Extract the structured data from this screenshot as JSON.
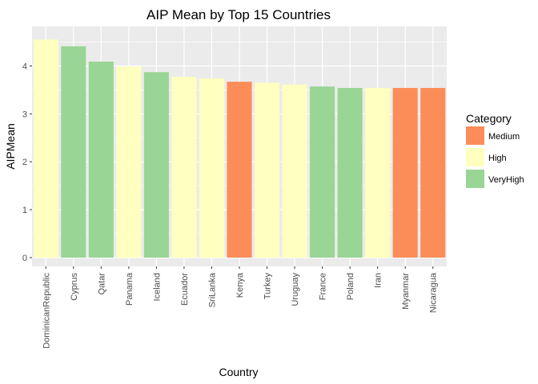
{
  "chart_data": {
    "type": "bar",
    "title": "AIP Mean by Top 15 Countries",
    "xlabel": "Country",
    "ylabel": "AIPMean",
    "ylim": [
      0,
      4.75
    ],
    "yticks": [
      0,
      1,
      2,
      3,
      4
    ],
    "categories": [
      "DominicanRepublic",
      "Cyprus",
      "Qatar",
      "Panama",
      "Iceland",
      "Ecuador",
      "SriLanka",
      "Kenya",
      "Turkey",
      "Uruguay",
      "France",
      "Poland",
      "Iran",
      "Myanmar",
      "Nicaragua"
    ],
    "values": [
      4.55,
      4.41,
      4.09,
      3.99,
      3.87,
      3.77,
      3.74,
      3.67,
      3.65,
      3.61,
      3.57,
      3.54,
      3.54,
      3.54,
      3.54
    ],
    "category_group": [
      "High",
      "VeryHigh",
      "VeryHigh",
      "High",
      "VeryHigh",
      "High",
      "High",
      "Medium",
      "High",
      "High",
      "VeryHigh",
      "VeryHigh",
      "High",
      "Medium",
      "Medium"
    ],
    "legend": {
      "title": "Category",
      "position": "right",
      "items": [
        {
          "name": "Medium",
          "color": "#fc8d59"
        },
        {
          "name": "High",
          "color": "#ffffbf"
        },
        {
          "name": "VeryHigh",
          "color": "#99d594"
        }
      ]
    },
    "grid": true,
    "panel_color": "#ebebeb",
    "grid_color": "#ffffff"
  }
}
